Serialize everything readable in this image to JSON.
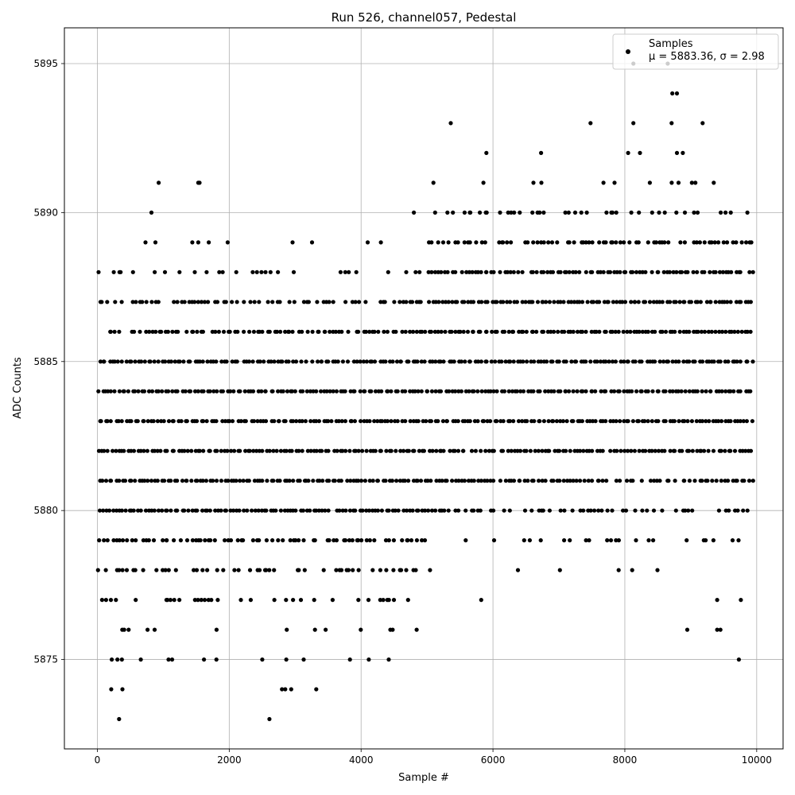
{
  "chart_data": {
    "type": "scatter",
    "title": "Run 526, channel057, Pedestal",
    "xlabel": "Sample #",
    "ylabel": "ADC Counts",
    "xlim": [
      -500,
      10400
    ],
    "ylim": [
      5872,
      5896.2
    ],
    "xticks": [
      0,
      2000,
      4000,
      6000,
      8000,
      10000
    ],
    "yticks": [
      5875,
      5880,
      5885,
      5890,
      5895
    ],
    "grid": true,
    "legend": {
      "placement": "top-right",
      "label": "Samples",
      "stats_text": "μ = 5883.36, σ = 2.98"
    },
    "marker_color": "#000000",
    "n_samples": 10000,
    "series": [
      {
        "name": "Samples",
        "x_start": 0,
        "x_end": 9900,
        "x_step": 50,
        "levels": [
          5875,
          5876,
          5877,
          5878,
          5879,
          5880,
          5881,
          5882,
          5883,
          5884,
          5885,
          5886,
          5887,
          5888,
          5889,
          5890,
          5891
        ],
        "occupancy_first_half": [
          0.06,
          0.2,
          0.32,
          0.55,
          0.7,
          0.96,
          1.0,
          1.0,
          1.0,
          1.0,
          0.95,
          0.85,
          0.7,
          0.28,
          0.02,
          0.01,
          0.0
        ],
        "occupancy_second_half": [
          0.0,
          0.01,
          0.02,
          0.08,
          0.25,
          0.55,
          0.82,
          0.96,
          1.0,
          1.0,
          1.0,
          1.0,
          1.0,
          0.95,
          0.7,
          0.3,
          0.08
        ]
      }
    ],
    "outliers": [
      {
        "x": 330,
        "y": 5873
      },
      {
        "x": 2610,
        "y": 5873
      },
      {
        "x": 210,
        "y": 5874
      },
      {
        "x": 380,
        "y": 5874
      },
      {
        "x": 2800,
        "y": 5874
      },
      {
        "x": 2850,
        "y": 5874
      },
      {
        "x": 2940,
        "y": 5874
      },
      {
        "x": 3320,
        "y": 5874
      },
      {
        "x": 820,
        "y": 5890
      },
      {
        "x": 4800,
        "y": 5890
      },
      {
        "x": 930,
        "y": 5891
      },
      {
        "x": 1530,
        "y": 5891
      },
      {
        "x": 1550,
        "y": 5891
      },
      {
        "x": 730,
        "y": 5889
      },
      {
        "x": 880,
        "y": 5889
      },
      {
        "x": 1440,
        "y": 5889
      },
      {
        "x": 1530,
        "y": 5889
      },
      {
        "x": 1690,
        "y": 5889
      },
      {
        "x": 2960,
        "y": 5889
      },
      {
        "x": 4100,
        "y": 5889
      },
      {
        "x": 4300,
        "y": 5889
      },
      {
        "x": 5360,
        "y": 5893
      },
      {
        "x": 7480,
        "y": 5893
      },
      {
        "x": 8130,
        "y": 5893
      },
      {
        "x": 8710,
        "y": 5893
      },
      {
        "x": 9180,
        "y": 5893
      },
      {
        "x": 5900,
        "y": 5892
      },
      {
        "x": 6730,
        "y": 5892
      },
      {
        "x": 8050,
        "y": 5892
      },
      {
        "x": 8230,
        "y": 5892
      },
      {
        "x": 8790,
        "y": 5892
      },
      {
        "x": 8880,
        "y": 5892
      },
      {
        "x": 8720,
        "y": 5894
      },
      {
        "x": 8790,
        "y": 5894
      },
      {
        "x": 8130,
        "y": 5895
      },
      {
        "x": 8650,
        "y": 5895
      },
      {
        "x": 9730,
        "y": 5875
      },
      {
        "x": 9400,
        "y": 5877
      },
      {
        "x": 9760,
        "y": 5877
      },
      {
        "x": 9400,
        "y": 5876
      },
      {
        "x": 9450,
        "y": 5876
      }
    ]
  }
}
